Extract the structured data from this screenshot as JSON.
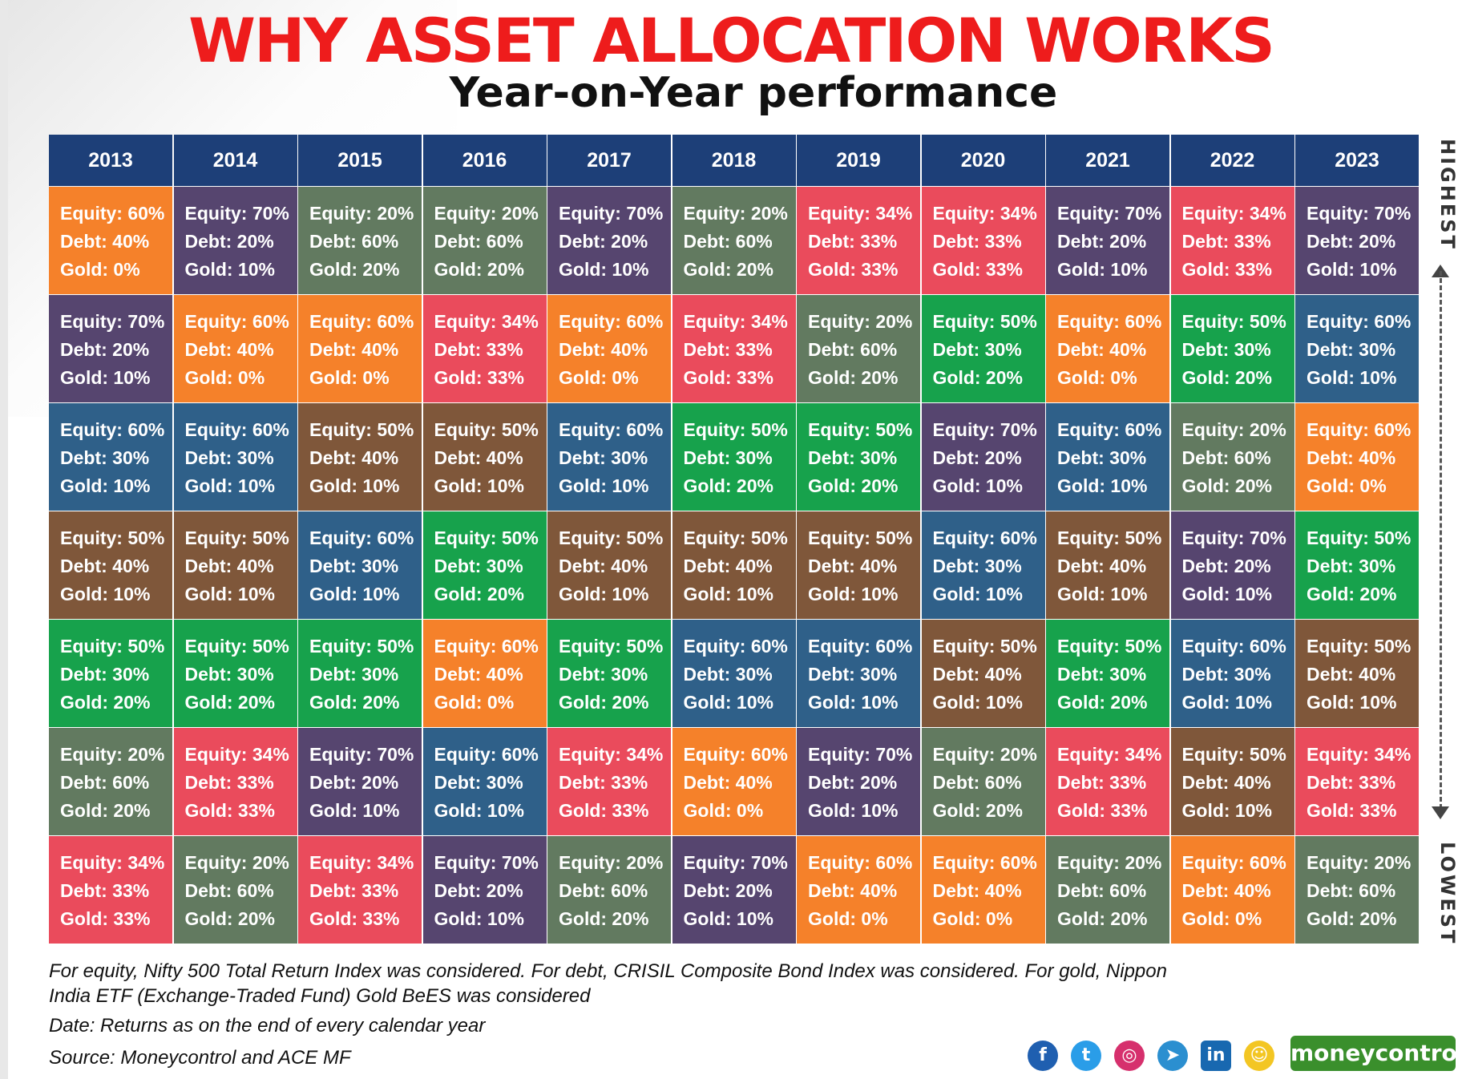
{
  "title": "WHY ASSET ALLOCATION WORKS",
  "subtitle": "Year-on-Year performance",
  "side_labels": {
    "top": "HIGHEST",
    "bottom": "LOWEST"
  },
  "colors": {
    "header": "#1d3f78",
    "E60_D40_G0": "#f5812a",
    "E70_D20_G10": "#56456f",
    "E20_D60_G20": "#627a60",
    "E34_D33_G33": "#ea4b5c",
    "E60_D30_G10": "#2f6089",
    "E50_D40_G10": "#7f573a",
    "E50_D30_G20": "#17a24c"
  },
  "chart_data": {
    "type": "table",
    "years": [
      "2013",
      "2014",
      "2015",
      "2016",
      "2017",
      "2018",
      "2019",
      "2020",
      "2021",
      "2022",
      "2023"
    ],
    "row_order": "highest to lowest",
    "columns": [
      [
        "E60_D40_G0",
        "E70_D20_G10",
        "E60_D30_G10",
        "E50_D40_G10",
        "E50_D30_G20",
        "E20_D60_G20",
        "E34_D33_G33"
      ],
      [
        "E70_D20_G10",
        "E60_D40_G0",
        "E60_D30_G10",
        "E50_D40_G10",
        "E50_D30_G20",
        "E34_D33_G33",
        "E20_D60_G20"
      ],
      [
        "E20_D60_G20",
        "E60_D40_G0",
        "E50_D40_G10",
        "E60_D30_G10",
        "E50_D30_G20",
        "E70_D20_G10",
        "E34_D33_G33"
      ],
      [
        "E20_D60_G20",
        "E34_D33_G33",
        "E50_D40_G10",
        "E50_D30_G20",
        "E60_D40_G0",
        "E60_D30_G10",
        "E70_D20_G10"
      ],
      [
        "E70_D20_G10",
        "E60_D40_G0",
        "E60_D30_G10",
        "E50_D40_G10",
        "E50_D30_G20",
        "E34_D33_G33",
        "E20_D60_G20"
      ],
      [
        "E20_D60_G20",
        "E34_D33_G33",
        "E50_D30_G20",
        "E50_D40_G10",
        "E60_D30_G10",
        "E60_D40_G0",
        "E70_D20_G10"
      ],
      [
        "E34_D33_G33",
        "E20_D60_G20",
        "E50_D30_G20",
        "E50_D40_G10",
        "E60_D30_G10",
        "E70_D20_G10",
        "E60_D40_G0"
      ],
      [
        "E34_D33_G33",
        "E50_D30_G20",
        "E70_D20_G10",
        "E60_D30_G10",
        "E50_D40_G10",
        "E20_D60_G20",
        "E60_D40_G0"
      ],
      [
        "E70_D20_G10",
        "E60_D40_G0",
        "E60_D30_G10",
        "E50_D40_G10",
        "E50_D30_G20",
        "E34_D33_G33",
        "E20_D60_G20"
      ],
      [
        "E34_D33_G33",
        "E50_D30_G20",
        "E20_D60_G20",
        "E70_D20_G10",
        "E60_D30_G10",
        "E50_D40_G10",
        "E60_D40_G0"
      ],
      [
        "E70_D20_G10",
        "E60_D30_G10",
        "E60_D40_G0",
        "E50_D30_G20",
        "E50_D40_G10",
        "E34_D33_G33",
        "E20_D60_G20"
      ]
    ],
    "portfolios": {
      "E60_D40_G0": {
        "lines": [
          "Equity: 60%",
          "Debt: 40%",
          "Gold: 0%"
        ]
      },
      "E70_D20_G10": {
        "lines": [
          "Equity: 70%",
          "Debt: 20%",
          "Gold: 10%"
        ]
      },
      "E20_D60_G20": {
        "lines": [
          "Equity: 20%",
          "Debt: 60%",
          "Gold: 20%"
        ]
      },
      "E34_D33_G33": {
        "lines": [
          "Equity: 34%",
          "Debt: 33%",
          "Gold: 33%"
        ]
      },
      "E60_D30_G10": {
        "lines": [
          "Equity: 60%",
          "Debt: 30%",
          "Gold: 10%"
        ]
      },
      "E50_D40_G10": {
        "lines": [
          "Equity: 50%",
          "Debt: 40%",
          "Gold: 10%"
        ]
      },
      "E50_D30_G20": {
        "lines": [
          "Equity: 50%",
          "Debt: 30%",
          "Gold: 20%"
        ]
      }
    }
  },
  "notes": {
    "methodology": "For equity, Nifty 500 Total Return Index was considered. For debt, CRISIL Composite Bond Index was considered. For gold, Nippon India ETF (Exchange-Traded Fund) Gold BeES was considered",
    "date": "Date: Returns as on the end of every calendar year",
    "source": "Source: Moneycontrol and ACE MF"
  },
  "footer": {
    "social_icons": [
      "facebook-icon",
      "twitter-icon",
      "instagram-icon",
      "telegram-icon",
      "linkedin-icon",
      "snapchat-icon"
    ],
    "logo": "moneycontrol"
  }
}
